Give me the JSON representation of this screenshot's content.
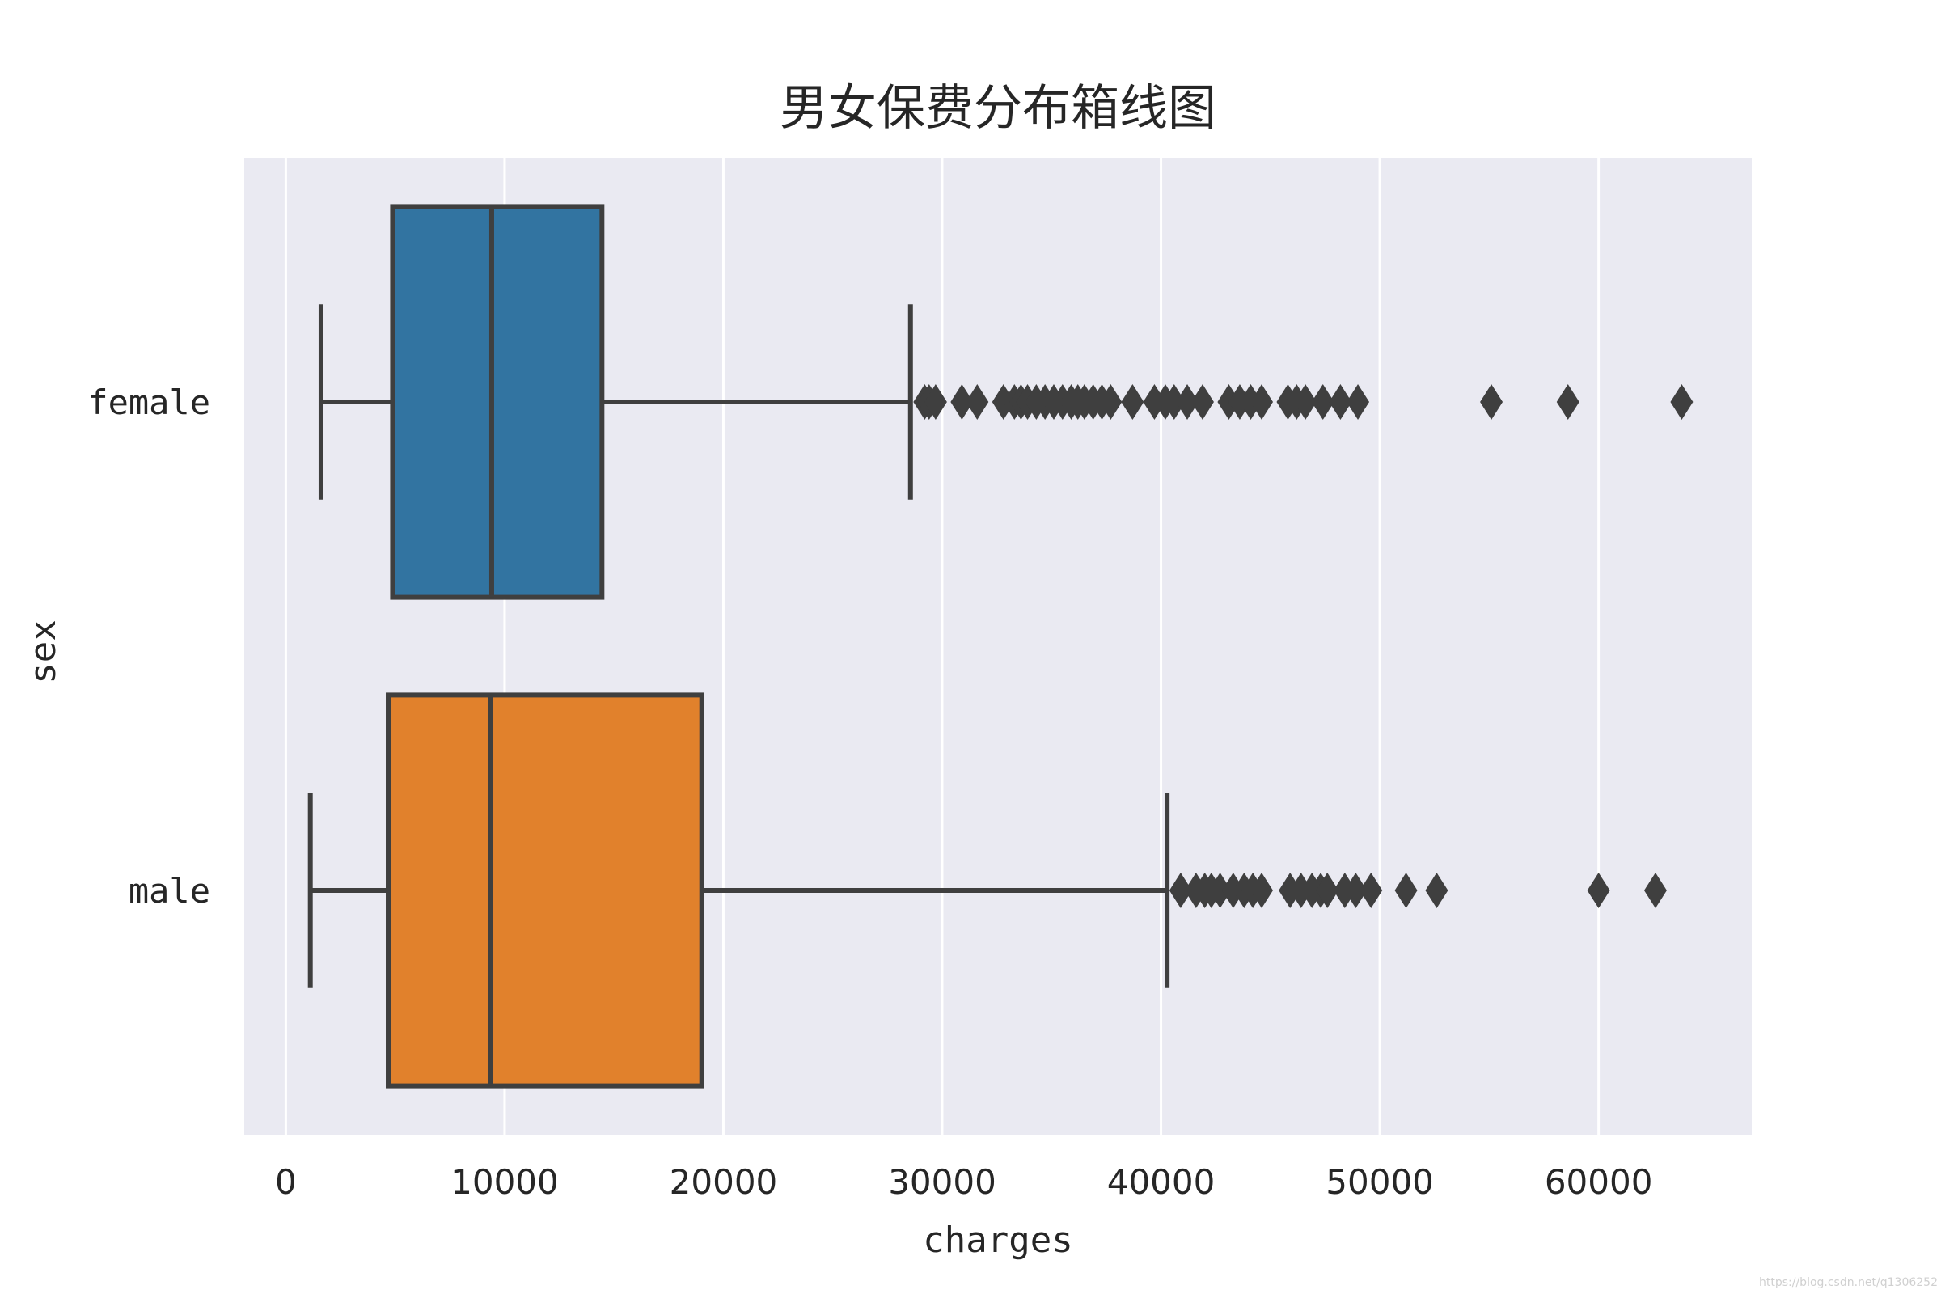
{
  "chart_data": {
    "type": "boxplot",
    "orientation": "horizontal",
    "title": "男女保费分布箱线图",
    "xlabel": "charges",
    "ylabel": "sex",
    "xlim": [
      -1900,
      67000
    ],
    "xticks": [
      0,
      10000,
      20000,
      30000,
      40000,
      50000,
      60000
    ],
    "grid": "vertical",
    "background": "#eaeaf2",
    "line_color": "#3f3f3f",
    "categories": [
      "female",
      "male"
    ],
    "series": [
      {
        "category": "female",
        "color": "#3274a1",
        "whisker_low": 1610,
        "q1": 4880,
        "median": 9410,
        "q3": 14450,
        "whisker_high": 28550,
        "outliers": [
          29200,
          29400,
          29700,
          30900,
          31600,
          32800,
          33300,
          33600,
          33900,
          34300,
          34700,
          35100,
          35500,
          35900,
          36200,
          36500,
          36900,
          37300,
          37700,
          38700,
          39700,
          40200,
          40600,
          41200,
          41900,
          43100,
          43600,
          44100,
          44600,
          45800,
          46200,
          46600,
          47400,
          48200,
          49000,
          55100,
          58600,
          63800
        ]
      },
      {
        "category": "male",
        "color": "#e1812c",
        "whisker_low": 1120,
        "q1": 4680,
        "median": 9370,
        "q3": 19010,
        "whisker_high": 40280,
        "outliers": [
          40900,
          41600,
          42000,
          42300,
          42700,
          43300,
          43800,
          44200,
          44600,
          45900,
          46400,
          46900,
          47300,
          47600,
          48400,
          48900,
          49600,
          51200,
          52600,
          60000,
          62600
        ]
      }
    ]
  },
  "watermark": "https://blog.csdn.net/q1306252"
}
